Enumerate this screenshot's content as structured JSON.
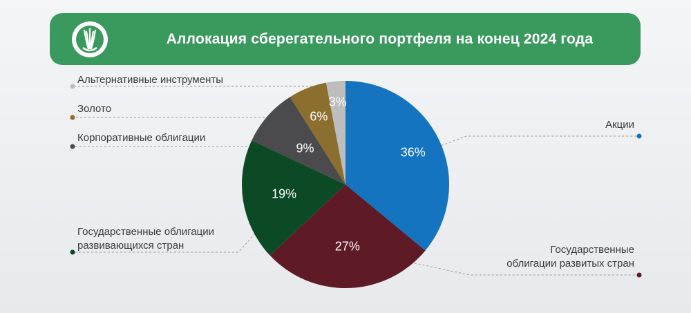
{
  "header": {
    "title": "Аллокация сберегательного портфеля на конец 2024 года"
  },
  "colors": {
    "banner": "#3a9a5d",
    "stocks": "#1474c0",
    "dev_bonds": "#5e1b26",
    "em_bonds": "#0c4a25",
    "corp_bonds": "#4b4b4e",
    "gold": "#8c6e2e",
    "alt": "#bdbdbd"
  },
  "chart_data": {
    "type": "pie",
    "title": "Аллокация сберегательного портфеля на конец 2024 года",
    "slices": [
      {
        "label": "Акции",
        "value": 36,
        "pct_text": "36%",
        "color": "#1474c0"
      },
      {
        "label": "Государственные облигации развитых стран",
        "value": 27,
        "pct_text": "27%",
        "color": "#5e1b26"
      },
      {
        "label": "Государственные облигации развивающихся стран",
        "value": 19,
        "pct_text": "19%",
        "color": "#0c4a25"
      },
      {
        "label": "Корпоративные облигации",
        "value": 9,
        "pct_text": "9%",
        "color": "#4b4b4e"
      },
      {
        "label": "Золото",
        "value": 6,
        "pct_text": "6%",
        "color": "#8c6e2e"
      },
      {
        "label": "Альтернативные инструменты",
        "value": 3,
        "pct_text": "3%",
        "color": "#bdbdbd"
      }
    ],
    "labels_text": {
      "stocks": "Акции",
      "dev_line1": "Государственные",
      "dev_line2": "облигации развитых стран",
      "em_line1": "Государственные облигации",
      "em_line2": "развивающихся стран",
      "corp": "Корпоративные облигации",
      "gold": "Золото",
      "alt": "Альтернативные инструменты"
    }
  }
}
